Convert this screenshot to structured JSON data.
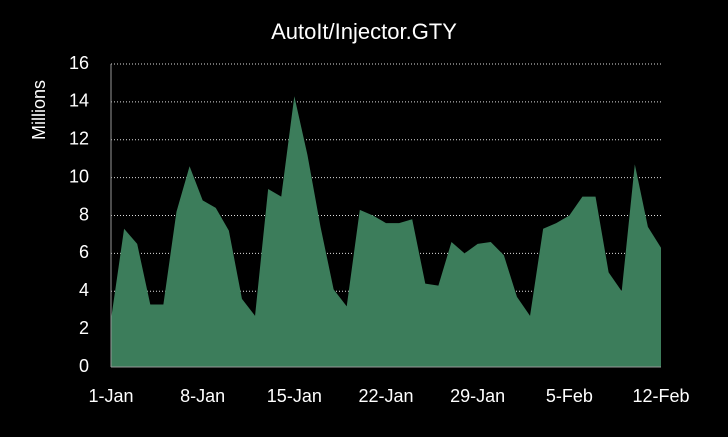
{
  "chart_data": {
    "type": "area",
    "title": "AutoIt/Injector.GTY",
    "y_label": "Millions",
    "categories": [
      "1-Jan",
      null,
      null,
      null,
      null,
      null,
      null,
      "8-Jan",
      null,
      null,
      null,
      null,
      null,
      null,
      "15-Jan",
      null,
      null,
      null,
      null,
      null,
      null,
      "22-Jan",
      null,
      null,
      null,
      null,
      null,
      null,
      "29-Jan",
      null,
      null,
      null,
      null,
      null,
      null,
      "5-Feb",
      null,
      null,
      null,
      null,
      null,
      null,
      "12-Feb"
    ],
    "values": [
      2.5,
      7.3,
      6.5,
      3.3,
      3.3,
      8.2,
      10.6,
      8.8,
      8.4,
      7.2,
      3.6,
      2.7,
      9.4,
      9.0,
      14.3,
      11.2,
      7.4,
      4.1,
      3.2,
      8.3,
      8.0,
      7.6,
      7.6,
      7.8,
      4.4,
      4.3,
      6.6,
      6.0,
      6.5,
      6.6,
      5.9,
      3.7,
      2.7,
      7.3,
      7.6,
      8.0,
      9.0,
      9.0,
      5.0,
      4.0,
      10.7,
      7.4,
      6.3
    ],
    "color": "#3c7d5b",
    "ylim": [
      0,
      16
    ],
    "yticks": [
      0,
      2,
      4,
      6,
      8,
      10,
      12,
      14,
      16
    ],
    "grid": true
  }
}
